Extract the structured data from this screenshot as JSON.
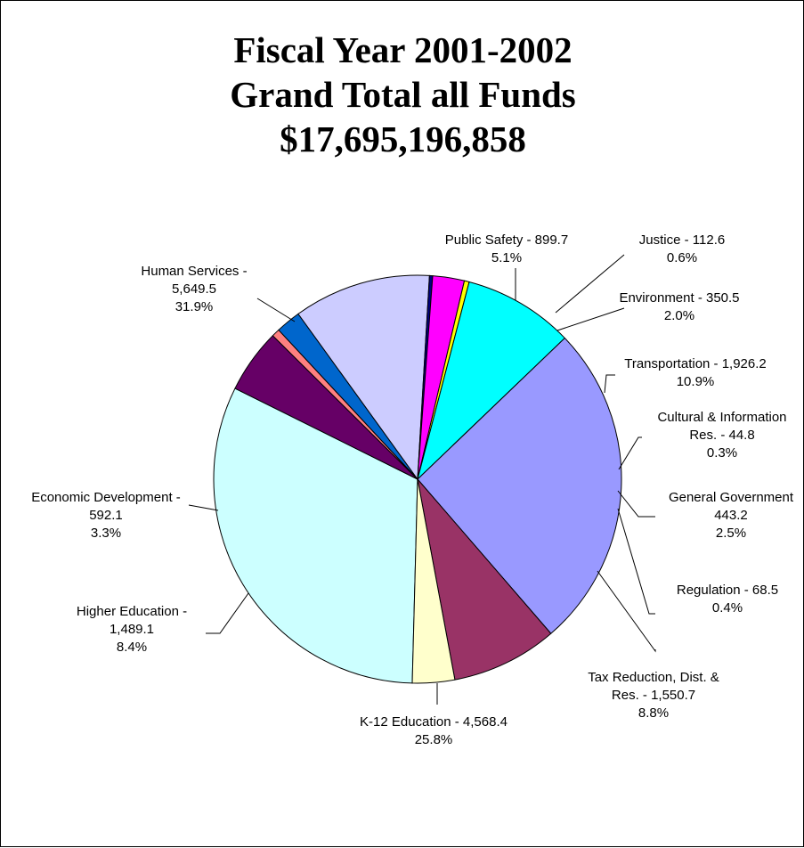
{
  "chart_data": {
    "type": "pie",
    "title_lines": [
      "Fiscal Year 2001-2002",
      "Grand Total all  Funds",
      "$17,695,196,858"
    ],
    "colors": {
      "outline": "#000000",
      "leader": "#000000"
    },
    "slices": [
      {
        "name": "Human Services",
        "value": 5649.5,
        "percent": 31.9,
        "color": "#CCFFFF",
        "label_lines": [
          "Human Services -",
          "5,649.5",
          "31.9%"
        ]
      },
      {
        "name": "Public Safety",
        "value": 899.7,
        "percent": 5.1,
        "color": "#660066",
        "label_lines": [
          "Public Safety - 899.7",
          "5.1%"
        ]
      },
      {
        "name": "Justice",
        "value": 112.6,
        "percent": 0.6,
        "color": "#FF8080",
        "label_lines": [
          "Justice - 112.6",
          "0.6%"
        ]
      },
      {
        "name": "Environment",
        "value": 350.5,
        "percent": 2.0,
        "color": "#0066CC",
        "label_lines": [
          "Environment - 350.5",
          "2.0%"
        ]
      },
      {
        "name": "Transportation",
        "value": 1926.2,
        "percent": 10.9,
        "color": "#CCCCFF",
        "label_lines": [
          "Transportation - 1,926.2",
          "10.9%"
        ]
      },
      {
        "name": "Cultural & Information Res.",
        "value": 44.8,
        "percent": 0.3,
        "color": "#000080",
        "label_lines": [
          "Cultural & Information",
          "Res. - 44.8",
          "0.3%"
        ]
      },
      {
        "name": "General Government",
        "value": 443.2,
        "percent": 2.5,
        "color": "#FF00FF",
        "label_lines": [
          "General Government",
          "443.2",
          "2.5%"
        ]
      },
      {
        "name": "Regulation",
        "value": 68.5,
        "percent": 0.4,
        "color": "#FFFF00",
        "label_lines": [
          "Regulation - 68.5",
          "0.4%"
        ]
      },
      {
        "name": "Tax Reduction, Dist. & Res.",
        "value": 1550.7,
        "percent": 8.8,
        "color": "#00FFFF",
        "label_lines": [
          "Tax Reduction, Dist. &",
          "Res. - 1,550.7",
          "8.8%"
        ]
      },
      {
        "name": "K-12 Education",
        "value": 4568.4,
        "percent": 25.8,
        "color": "#9999FF",
        "label_lines": [
          "K-12 Education - 4,568.4",
          "25.8%"
        ]
      },
      {
        "name": "Higher Education",
        "value": 1489.1,
        "percent": 8.4,
        "color": "#993366",
        "label_lines": [
          "Higher Education -",
          "1,489.1",
          "8.4%"
        ]
      },
      {
        "name": "Economic Development",
        "value": 592.1,
        "percent": 3.3,
        "color": "#FFFFCC",
        "label_lines": [
          "Economic Development -",
          "592.1",
          "3.3%"
        ]
      }
    ]
  }
}
